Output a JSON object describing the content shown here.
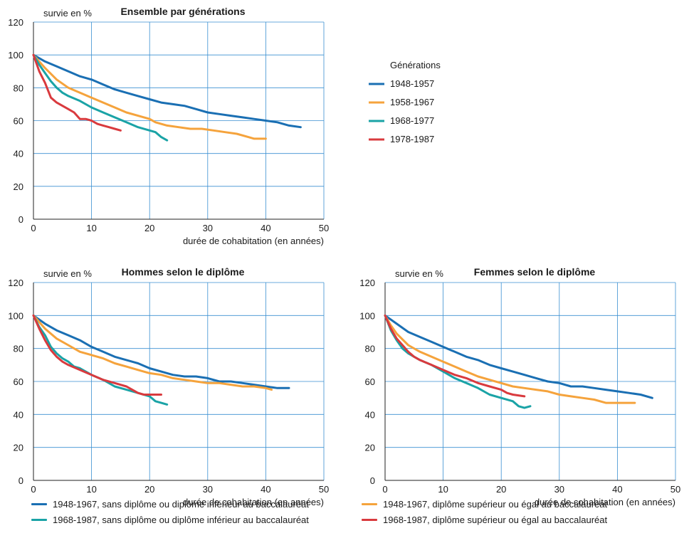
{
  "colors": {
    "blue": "#1a6fb3",
    "orange": "#f5a33c",
    "teal": "#1aa3a6",
    "red": "#d93a3e",
    "grid": "#3a8fd1",
    "axis": "#222222",
    "text": "#1a1a1a"
  },
  "chart_data": [
    {
      "type": "line",
      "title": "Ensemble par générations",
      "ylabel": "survie en %",
      "xlabel": "durée de cohabitation (en années)",
      "xlim": [
        0,
        50
      ],
      "ylim": [
        0,
        120
      ],
      "xticks": [
        "0",
        "10",
        "20",
        "30",
        "40",
        "50"
      ],
      "yticks": [
        "0",
        "20",
        "40",
        "60",
        "80",
        "100",
        "120"
      ],
      "grid": true,
      "legend_title": "Générations",
      "legend_placement": "right",
      "series": [
        {
          "name": "1948-1957",
          "color": "blue",
          "x": [
            0,
            2,
            4,
            6,
            8,
            10,
            12,
            14,
            16,
            18,
            20,
            22,
            24,
            26,
            28,
            30,
            32,
            34,
            36,
            38,
            40,
            42,
            44,
            46
          ],
          "y": [
            100,
            96,
            93,
            90,
            87,
            85,
            82,
            79,
            77,
            75,
            73,
            71,
            70,
            69,
            67,
            65,
            64,
            63,
            62,
            61,
            60,
            59,
            57,
            56
          ]
        },
        {
          "name": "1958-1967",
          "color": "orange",
          "x": [
            0,
            2,
            4,
            6,
            8,
            10,
            12,
            14,
            16,
            18,
            20,
            21,
            23,
            25,
            27,
            29,
            31,
            33,
            35,
            37,
            38,
            40
          ],
          "y": [
            100,
            92,
            85,
            80,
            77,
            74,
            71,
            68,
            65,
            63,
            61,
            59,
            57,
            56,
            55,
            55,
            54,
            53,
            52,
            50,
            49,
            49
          ]
        },
        {
          "name": "1968-1977",
          "color": "teal",
          "x": [
            0,
            1,
            2,
            3,
            4,
            5,
            6,
            8,
            10,
            12,
            14,
            16,
            18,
            20,
            21,
            22,
            23
          ],
          "y": [
            100,
            94,
            89,
            84,
            80,
            77,
            75,
            72,
            68,
            65,
            62,
            59,
            56,
            54,
            53,
            50,
            48
          ]
        },
        {
          "name": "1978-1987",
          "color": "red",
          "x": [
            0,
            1,
            2,
            3,
            4,
            5,
            6,
            7,
            8,
            9,
            10,
            11,
            12,
            13,
            14,
            15
          ],
          "y": [
            100,
            90,
            83,
            74,
            71,
            69,
            67,
            65,
            61,
            61,
            60,
            58,
            57,
            56,
            55,
            54
          ]
        }
      ]
    },
    {
      "type": "line",
      "title": "Hommes selon le diplôme",
      "ylabel": "survie en %",
      "xlabel": "durée de cohabitation (en années)",
      "xlim": [
        0,
        50
      ],
      "ylim": [
        0,
        120
      ],
      "xticks": [
        "0",
        "10",
        "20",
        "30",
        "40",
        "50"
      ],
      "yticks": [
        "0",
        "20",
        "40",
        "60",
        "80",
        "100",
        "120"
      ],
      "grid": true,
      "series": [
        {
          "name": "1948-1967, sans diplôme ou diplôme inférieur au baccalauréat",
          "color": "blue",
          "x": [
            0,
            2,
            4,
            6,
            8,
            10,
            12,
            14,
            16,
            18,
            20,
            22,
            24,
            26,
            28,
            30,
            32,
            34,
            36,
            38,
            40,
            42,
            44
          ],
          "y": [
            100,
            95,
            91,
            88,
            85,
            81,
            78,
            75,
            73,
            71,
            68,
            66,
            64,
            63,
            63,
            62,
            60,
            60,
            59,
            58,
            57,
            56,
            56
          ]
        },
        {
          "name": "1948-1967, diplôme supérieur ou égal au baccalauréat",
          "color": "orange",
          "x": [
            0,
            2,
            4,
            6,
            8,
            10,
            12,
            14,
            16,
            18,
            20,
            22,
            24,
            26,
            28,
            30,
            32,
            34,
            36,
            38,
            40,
            41
          ],
          "y": [
            100,
            92,
            86,
            82,
            78,
            76,
            74,
            71,
            69,
            67,
            65,
            64,
            62,
            61,
            60,
            59,
            59,
            58,
            57,
            57,
            56,
            55
          ]
        },
        {
          "name": "1968-1987, sans diplôme ou diplôme inférieur au baccalauréat",
          "color": "teal",
          "x": [
            0,
            1,
            2,
            3,
            4,
            5,
            6,
            7,
            8,
            10,
            12,
            14,
            16,
            18,
            20,
            21,
            22,
            23
          ],
          "y": [
            100,
            93,
            88,
            81,
            77,
            74,
            72,
            69,
            68,
            64,
            61,
            57,
            55,
            53,
            51,
            48,
            47,
            46
          ]
        },
        {
          "name": "1968-1987, diplôme supérieur ou égal au baccalauréat",
          "color": "red",
          "x": [
            0,
            1,
            2,
            3,
            4,
            5,
            6,
            8,
            10,
            12,
            14,
            16,
            17,
            18,
            19,
            20,
            22
          ],
          "y": [
            100,
            92,
            85,
            79,
            75,
            72,
            70,
            67,
            64,
            61,
            59,
            57,
            55,
            53,
            52,
            52,
            52
          ]
        }
      ]
    },
    {
      "type": "line",
      "title": "Femmes selon le diplôme",
      "ylabel": "survie en %",
      "xlabel": "durée de cohabitation (en années)",
      "xlim": [
        0,
        50
      ],
      "ylim": [
        0,
        120
      ],
      "xticks": [
        "0",
        "10",
        "20",
        "30",
        "40",
        "50"
      ],
      "yticks": [
        "0",
        "20",
        "40",
        "60",
        "80",
        "100",
        "120"
      ],
      "grid": true,
      "series": [
        {
          "name": "1948-1967, sans diplôme ou diplôme inférieur au baccalauréat",
          "color": "blue",
          "x": [
            0,
            2,
            4,
            6,
            8,
            10,
            12,
            14,
            16,
            18,
            20,
            22,
            24,
            26,
            28,
            30,
            32,
            34,
            36,
            38,
            40,
            42,
            44,
            46
          ],
          "y": [
            100,
            95,
            90,
            87,
            84,
            81,
            78,
            75,
            73,
            70,
            68,
            66,
            64,
            62,
            60,
            59,
            57,
            57,
            56,
            55,
            54,
            53,
            52,
            50
          ]
        },
        {
          "name": "1948-1967, diplôme supérieur ou égal au baccalauréat",
          "color": "orange",
          "x": [
            0,
            1,
            2,
            4,
            6,
            8,
            10,
            12,
            14,
            16,
            18,
            20,
            22,
            24,
            26,
            28,
            30,
            32,
            34,
            36,
            38,
            40,
            43
          ],
          "y": [
            100,
            94,
            89,
            82,
            78,
            75,
            72,
            69,
            66,
            63,
            61,
            59,
            57,
            56,
            55,
            54,
            52,
            51,
            50,
            49,
            47,
            47,
            47
          ]
        },
        {
          "name": "1968-1987, sans diplôme ou diplôme inférieur au baccalauréat",
          "color": "teal",
          "x": [
            0,
            1,
            2,
            3,
            4,
            5,
            6,
            8,
            10,
            12,
            14,
            16,
            18,
            20,
            22,
            23,
            24,
            25
          ],
          "y": [
            100,
            91,
            85,
            80,
            77,
            75,
            73,
            70,
            66,
            62,
            59,
            56,
            52,
            50,
            48,
            45,
            44,
            45
          ]
        },
        {
          "name": "1968-1987, diplôme supérieur ou égal au baccalauréat",
          "color": "red",
          "x": [
            0,
            1,
            2,
            3,
            4,
            5,
            6,
            8,
            10,
            12,
            14,
            16,
            18,
            20,
            21,
            22,
            24
          ],
          "y": [
            100,
            92,
            86,
            82,
            78,
            75,
            73,
            70,
            67,
            64,
            62,
            59,
            57,
            55,
            53,
            52,
            51
          ]
        }
      ]
    }
  ],
  "bottom_legend": [
    {
      "label": "1948-1967, sans diplôme ou diplôme inférieur au baccalauréat",
      "color": "blue"
    },
    {
      "label": "1968-1987,  sans diplôme ou diplôme inférieur au baccalauréat",
      "color": "teal"
    },
    {
      "label": "1948-1967, diplôme supérieur ou égal au baccalauréat",
      "color": "orange"
    },
    {
      "label": "1968-1987, diplôme supérieur ou égal au baccalauréat",
      "color": "red"
    }
  ]
}
